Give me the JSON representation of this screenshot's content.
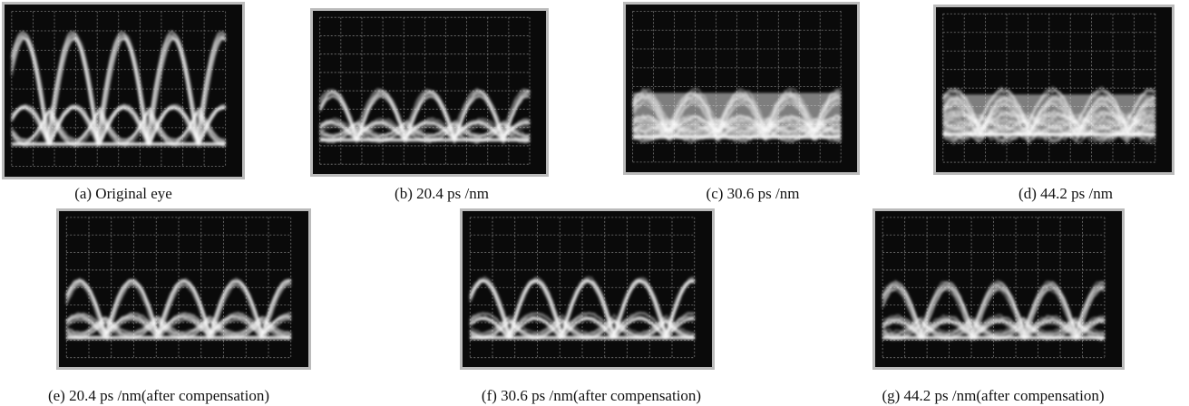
{
  "panels": [
    {
      "caption": "(a) Original eye"
    },
    {
      "caption": "(b) 20.4 ps /nm"
    },
    {
      "caption": "(c) 30.6 ps /nm"
    },
    {
      "caption": "(d) 44.2 ps /nm"
    },
    {
      "caption": "(e) 20.4 ps /nm(after compensation)"
    },
    {
      "caption": "(f) 30.6 ps /nm(after compensation)"
    },
    {
      "caption": "(g) 44.2 ps /nm(after compensation)"
    }
  ]
}
